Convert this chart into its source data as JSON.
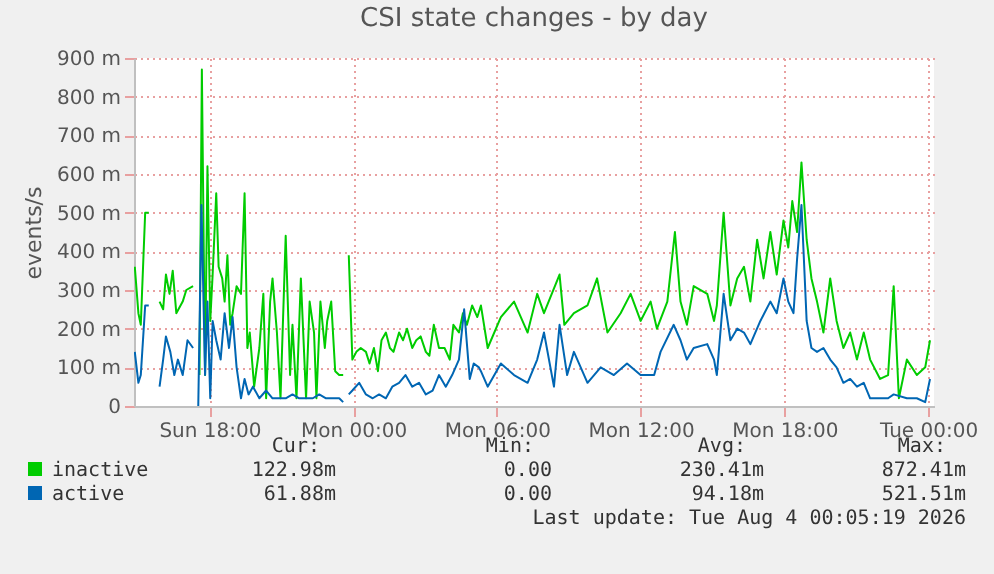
{
  "chart_data": {
    "type": "line",
    "title": "CSI state changes - by day",
    "ylabel": "events/s",
    "xlim": [
      "2026-08-02T14:51",
      "2026-08-04T00:15"
    ],
    "xticks": [
      {
        "value": "2026-08-02T18:00",
        "label": "Sun 18:00"
      },
      {
        "value": "2026-08-03T00:00",
        "label": "Mon 00:00"
      },
      {
        "value": "2026-08-03T06:00",
        "label": "Mon 06:00"
      },
      {
        "value": "2026-08-03T12:00",
        "label": "Mon 12:00"
      },
      {
        "value": "2026-08-03T18:00",
        "label": "Mon 18:00"
      },
      {
        "value": "2026-08-04T00:00",
        "label": "Tue 00:00"
      }
    ],
    "ylim": [
      0,
      900
    ],
    "yticks": [
      0,
      {
        "value": 100,
        "label": "100 m"
      },
      {
        "value": 200,
        "label": "200 m"
      },
      {
        "value": 300,
        "label": "300 m"
      },
      {
        "value": 400,
        "label": "400 m"
      },
      {
        "value": 500,
        "label": "500 m"
      },
      {
        "value": 600,
        "label": "600 m"
      },
      {
        "value": 700,
        "label": "700 m"
      },
      {
        "value": 800,
        "label": "800 m"
      },
      {
        "value": 900,
        "label": "900 m"
      }
    ],
    "grid": true,
    "legend": "bottom",
    "line_style": "solid",
    "marker": "none",
    "series": [
      {
        "name": "inactive",
        "color": "#00cc00",
        "x": [
          "2026-08-02T14:53",
          "2026-08-02T15:02",
          "2026-08-02T15:08",
          "2026-08-02T15:19",
          "2026-08-02T15:28",
          "2026-08-02T15:36",
          "2026-08-02T15:55",
          "2026-08-02T16:04",
          "2026-08-02T16:11",
          "2026-08-02T16:20",
          "2026-08-02T16:28",
          "2026-08-02T16:37",
          "2026-08-02T16:53",
          "2026-08-02T17:02",
          "2026-08-02T17:19",
          "2026-08-02T17:30",
          "2026-08-02T17:35",
          "2026-08-02T17:41",
          "2026-08-02T17:49",
          "2026-08-02T17:55",
          "2026-08-02T18:02",
          "2026-08-02T18:08",
          "2026-08-02T18:17",
          "2026-08-02T18:23",
          "2026-08-02T18:32",
          "2026-08-02T18:38",
          "2026-08-02T18:45",
          "2026-08-02T18:52",
          "2026-08-02T18:58",
          "2026-08-02T19:08",
          "2026-08-02T19:19",
          "2026-08-02T19:28",
          "2026-08-02T19:35",
          "2026-08-02T19:41",
          "2026-08-02T19:52",
          "2026-08-02T20:05",
          "2026-08-02T20:15",
          "2026-08-02T20:22",
          "2026-08-02T20:32",
          "2026-08-02T20:38",
          "2026-08-02T20:49",
          "2026-08-02T20:58",
          "2026-08-02T21:11",
          "2026-08-02T21:22",
          "2026-08-02T21:28",
          "2026-08-02T21:38",
          "2026-08-02T21:49",
          "2026-08-02T22:02",
          "2026-08-02T22:11",
          "2026-08-02T22:22",
          "2026-08-02T22:28",
          "2026-08-02T22:38",
          "2026-08-02T22:49",
          "2026-08-02T22:55",
          "2026-08-02T23:05",
          "2026-08-02T23:15",
          "2026-08-02T23:25",
          "2026-08-02T23:35",
          "2026-08-02T23:42",
          "2026-08-02T23:49",
          "2026-08-02T23:58",
          "2026-08-03T00:08",
          "2026-08-03T00:19",
          "2026-08-03T00:32",
          "2026-08-03T00:41",
          "2026-08-03T00:52",
          "2026-08-03T01:02",
          "2026-08-03T01:11",
          "2026-08-03T01:22",
          "2026-08-03T01:32",
          "2026-08-03T01:41",
          "2026-08-03T01:55",
          "2026-08-03T02:05",
          "2026-08-03T02:15",
          "2026-08-03T02:28",
          "2026-08-03T02:38",
          "2026-08-03T02:49",
          "2026-08-03T03:02",
          "2026-08-03T03:11",
          "2026-08-03T03:22",
          "2026-08-03T03:35",
          "2026-08-03T03:49",
          "2026-08-03T04:02",
          "2026-08-03T04:11",
          "2026-08-03T04:25",
          "2026-08-03T04:35",
          "2026-08-03T04:45",
          "2026-08-03T04:58",
          "2026-08-03T05:11",
          "2026-08-03T05:20",
          "2026-08-03T05:37",
          "2026-08-03T06:10",
          "2026-08-03T06:43",
          "2026-08-03T07:17",
          "2026-08-03T07:41",
          "2026-08-03T07:58",
          "2026-08-03T08:37",
          "2026-08-03T08:49",
          "2026-08-03T09:13",
          "2026-08-03T09:47",
          "2026-08-03T10:11",
          "2026-08-03T10:37",
          "2026-08-03T11:10",
          "2026-08-03T11:35",
          "2026-08-03T12:00",
          "2026-08-03T12:25",
          "2026-08-03T12:41",
          "2026-08-03T13:07",
          "2026-08-03T13:26",
          "2026-08-03T13:40",
          "2026-08-03T13:56",
          "2026-08-03T14:13",
          "2026-08-03T14:47",
          "2026-08-03T15:04",
          "2026-08-03T15:11",
          "2026-08-03T15:28",
          "2026-08-03T15:45",
          "2026-08-03T16:02",
          "2026-08-03T16:19",
          "2026-08-03T16:35",
          "2026-08-03T16:52",
          "2026-08-03T17:08",
          "2026-08-03T17:25",
          "2026-08-03T17:41",
          "2026-08-03T17:58",
          "2026-08-03T18:10",
          "2026-08-03T18:20",
          "2026-08-03T18:32",
          "2026-08-03T18:43",
          "2026-08-03T18:56",
          "2026-08-03T19:08",
          "2026-08-03T19:22",
          "2026-08-03T19:38",
          "2026-08-03T19:55",
          "2026-08-03T20:11",
          "2026-08-03T20:28",
          "2026-08-03T20:45",
          "2026-08-03T21:02",
          "2026-08-03T21:19",
          "2026-08-03T21:35",
          "2026-08-03T22:00",
          "2026-08-03T22:20",
          "2026-08-03T22:34",
          "2026-08-03T22:47",
          "2026-08-03T23:07",
          "2026-08-03T23:32",
          "2026-08-03T23:53",
          "2026-08-04T00:05"
        ],
        "values": [
          360,
          240,
          210,
          500,
          500,
          null,
          270,
          250,
          340,
          290,
          350,
          240,
          270,
          300,
          310,
          null,
          80,
          870,
          80,
          620,
          220,
          340,
          550,
          360,
          330,
          270,
          390,
          210,
          240,
          310,
          290,
          550,
          150,
          190,
          50,
          150,
          290,
          20,
          270,
          330,
          190,
          20,
          440,
          80,
          210,
          20,
          330,
          20,
          270,
          190,
          20,
          270,
          150,
          220,
          270,
          90,
          80,
          80,
          null,
          390,
          120,
          140,
          150,
          140,
          110,
          150,
          90,
          170,
          190,
          150,
          140,
          190,
          170,
          200,
          150,
          170,
          180,
          140,
          130,
          210,
          150,
          150,
          120,
          210,
          190,
          240,
          210,
          260,
          230,
          260,
          150,
          230,
          270,
          190,
          290,
          240,
          340,
          210,
          240,
          260,
          330,
          190,
          240,
          290,
          220,
          270,
          200,
          270,
          450,
          270,
          210,
          310,
          290,
          220,
          260,
          500,
          260,
          330,
          360,
          270,
          430,
          330,
          450,
          340,
          480,
          410,
          530,
          450,
          630,
          430,
          330,
          270,
          190,
          330,
          220,
          150,
          190,
          120,
          190,
          120,
          70,
          80,
          310,
          20,
          120,
          80,
          100,
          170
        ]
      },
      {
        "name": "active",
        "color": "#0066b3",
        "x": [
          "2026-08-02T14:53",
          "2026-08-02T15:02",
          "2026-08-02T15:08",
          "2026-08-02T15:19",
          "2026-08-02T15:28",
          "2026-08-02T15:36",
          "2026-08-02T15:55",
          "2026-08-02T16:04",
          "2026-08-02T16:11",
          "2026-08-02T16:22",
          "2026-08-02T16:32",
          "2026-08-02T16:41",
          "2026-08-02T16:53",
          "2026-08-02T17:05",
          "2026-08-02T17:19",
          "2026-08-02T17:27",
          "2026-08-02T17:32",
          "2026-08-02T17:40",
          "2026-08-02T17:49",
          "2026-08-02T17:55",
          "2026-08-02T18:02",
          "2026-08-02T18:08",
          "2026-08-02T18:17",
          "2026-08-02T18:28",
          "2026-08-02T18:38",
          "2026-08-02T18:49",
          "2026-08-02T18:58",
          "2026-08-02T19:08",
          "2026-08-02T19:19",
          "2026-08-02T19:28",
          "2026-08-02T19:38",
          "2026-08-02T19:49",
          "2026-08-02T20:05",
          "2026-08-02T20:22",
          "2026-08-02T20:38",
          "2026-08-02T20:55",
          "2026-08-02T21:11",
          "2026-08-02T21:28",
          "2026-08-02T21:45",
          "2026-08-02T22:02",
          "2026-08-02T22:19",
          "2026-08-02T22:35",
          "2026-08-02T22:52",
          "2026-08-02T23:08",
          "2026-08-02T23:25",
          "2026-08-02T23:35",
          "2026-08-02T23:42",
          "2026-08-02T23:49",
          "2026-08-02T23:58",
          "2026-08-03T00:15",
          "2026-08-03T00:32",
          "2026-08-03T00:49",
          "2026-08-03T01:05",
          "2026-08-03T01:22",
          "2026-08-03T01:38",
          "2026-08-03T01:55",
          "2026-08-03T02:11",
          "2026-08-03T02:28",
          "2026-08-03T02:45",
          "2026-08-03T03:02",
          "2026-08-03T03:19",
          "2026-08-03T03:35",
          "2026-08-03T03:52",
          "2026-08-03T04:08",
          "2026-08-03T04:25",
          "2026-08-03T04:38",
          "2026-08-03T04:52",
          "2026-08-03T05:02",
          "2026-08-03T05:15",
          "2026-08-03T05:20",
          "2026-08-03T05:37",
          "2026-08-03T06:10",
          "2026-08-03T06:43",
          "2026-08-03T07:17",
          "2026-08-03T07:41",
          "2026-08-03T07:58",
          "2026-08-03T08:23",
          "2026-08-03T08:37",
          "2026-08-03T08:56",
          "2026-08-03T09:13",
          "2026-08-03T09:47",
          "2026-08-03T10:20",
          "2026-08-03T10:53",
          "2026-08-03T11:26",
          "2026-08-03T12:00",
          "2026-08-03T12:34",
          "2026-08-03T12:50",
          "2026-08-03T13:23",
          "2026-08-03T13:40",
          "2026-08-03T13:56",
          "2026-08-03T14:13",
          "2026-08-03T14:47",
          "2026-08-03T15:04",
          "2026-08-03T15:11",
          "2026-08-03T15:28",
          "2026-08-03T15:45",
          "2026-08-03T16:02",
          "2026-08-03T16:19",
          "2026-08-03T16:35",
          "2026-08-03T17:00",
          "2026-08-03T17:25",
          "2026-08-03T17:41",
          "2026-08-03T17:58",
          "2026-08-03T18:10",
          "2026-08-03T18:23",
          "2026-08-03T18:32",
          "2026-08-03T18:43",
          "2026-08-03T18:56",
          "2026-08-03T19:08",
          "2026-08-03T19:22",
          "2026-08-03T19:38",
          "2026-08-03T19:55",
          "2026-08-03T20:11",
          "2026-08-03T20:28",
          "2026-08-03T20:45",
          "2026-08-03T21:02",
          "2026-08-03T21:19",
          "2026-08-03T21:35",
          "2026-08-03T22:00",
          "2026-08-03T22:20",
          "2026-08-03T22:34",
          "2026-08-03T23:07",
          "2026-08-03T23:32",
          "2026-08-03T23:53",
          "2026-08-04T00:05"
        ],
        "values": [
          140,
          60,
          80,
          260,
          260,
          null,
          50,
          120,
          180,
          140,
          80,
          120,
          80,
          170,
          150,
          null,
          0,
          520,
          80,
          270,
          20,
          220,
          170,
          120,
          240,
          150,
          230,
          100,
          20,
          70,
          30,
          50,
          20,
          40,
          20,
          20,
          20,
          30,
          20,
          20,
          20,
          30,
          20,
          20,
          20,
          10,
          null,
          30,
          40,
          60,
          30,
          20,
          30,
          20,
          50,
          60,
          80,
          50,
          60,
          30,
          40,
          80,
          50,
          80,
          120,
          250,
          70,
          110,
          100,
          90,
          50,
          110,
          80,
          60,
          120,
          190,
          50,
          210,
          80,
          140,
          60,
          100,
          80,
          110,
          80,
          80,
          140,
          210,
          170,
          120,
          150,
          160,
          120,
          80,
          290,
          170,
          200,
          190,
          160,
          220,
          270,
          240,
          330,
          270,
          240,
          380,
          520,
          220,
          150,
          140,
          150,
          120,
          100,
          60,
          70,
          50,
          60,
          20,
          20,
          20,
          30,
          20,
          20,
          10,
          70
        ]
      }
    ],
    "annotations": [
      "Cur:",
      "Min:",
      "Avg:",
      "Max:",
      "122.98m",
      "0.00",
      "230.41m",
      "872.41m",
      "61.88m",
      "0.00",
      "94.18m",
      "521.51m",
      "Last update: Tue Aug  4 00:05:19 2026"
    ]
  }
}
